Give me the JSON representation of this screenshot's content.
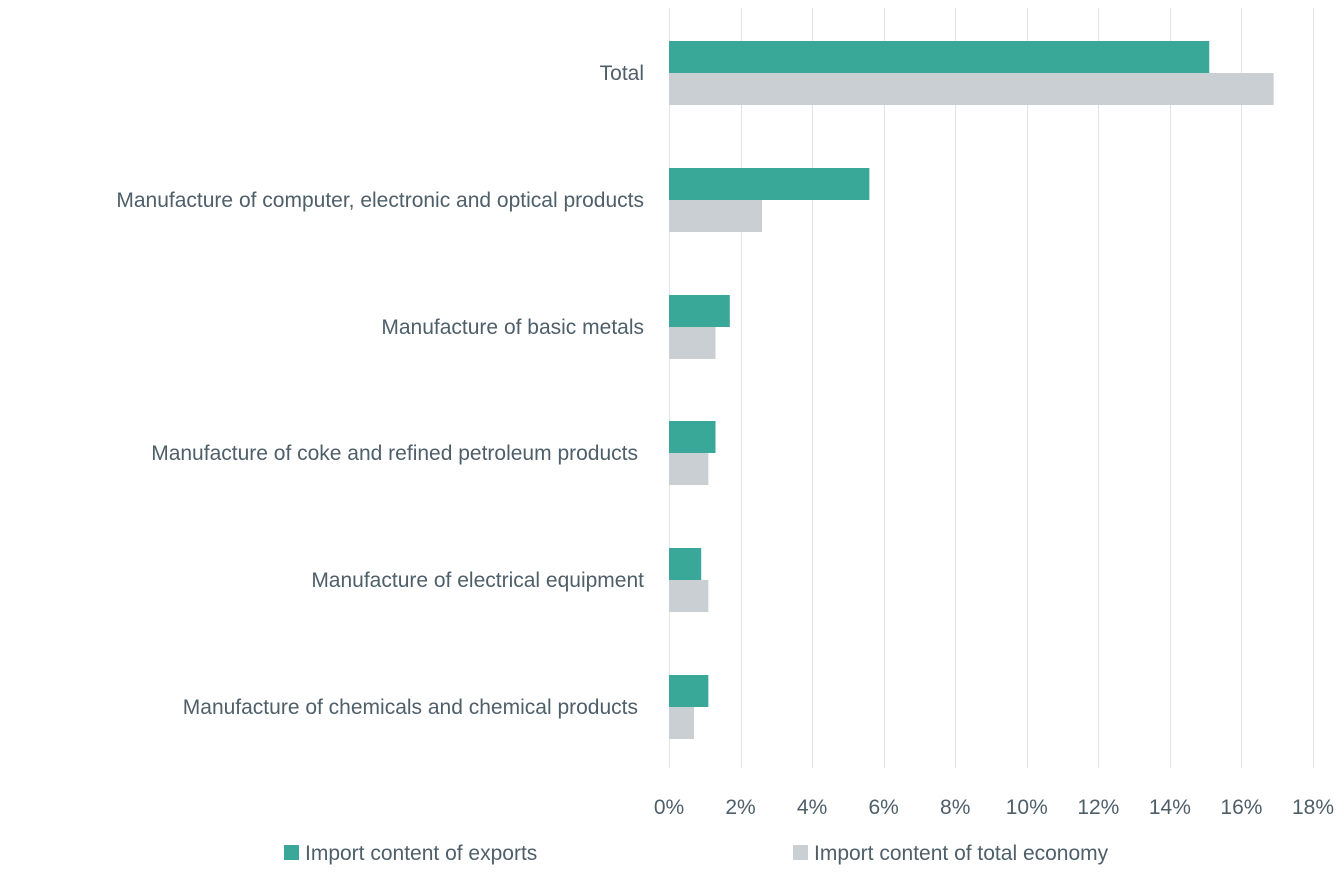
{
  "chart_data": {
    "type": "bar",
    "orientation": "horizontal",
    "categories": [
      "Total",
      "Manufacture of computer, electronic and optical products",
      "Manufacture of basic metals",
      "Manufacture of coke and refined petroleum products",
      "Manufacture of electrical equipment",
      "Manufacture of chemicals and chemical products"
    ],
    "series": [
      {
        "name": "Import content of exports",
        "color": "#3aa898",
        "values": [
          15.1,
          5.6,
          1.7,
          1.3,
          0.9,
          1.1
        ]
      },
      {
        "name": "Import content of total economy",
        "color": "#c9cfd3",
        "values": [
          16.9,
          2.6,
          1.3,
          1.1,
          1.1,
          0.7
        ]
      }
    ],
    "xlim": [
      0,
      18
    ],
    "x_ticks": [
      "0%",
      "2%",
      "4%",
      "6%",
      "8%",
      "10%",
      "12%",
      "14%",
      "16%",
      "18%"
    ],
    "tick_values": [
      0,
      2,
      4,
      6,
      8,
      10,
      12,
      14,
      16,
      18
    ],
    "grid": "vertical",
    "legend_position": "bottom"
  }
}
